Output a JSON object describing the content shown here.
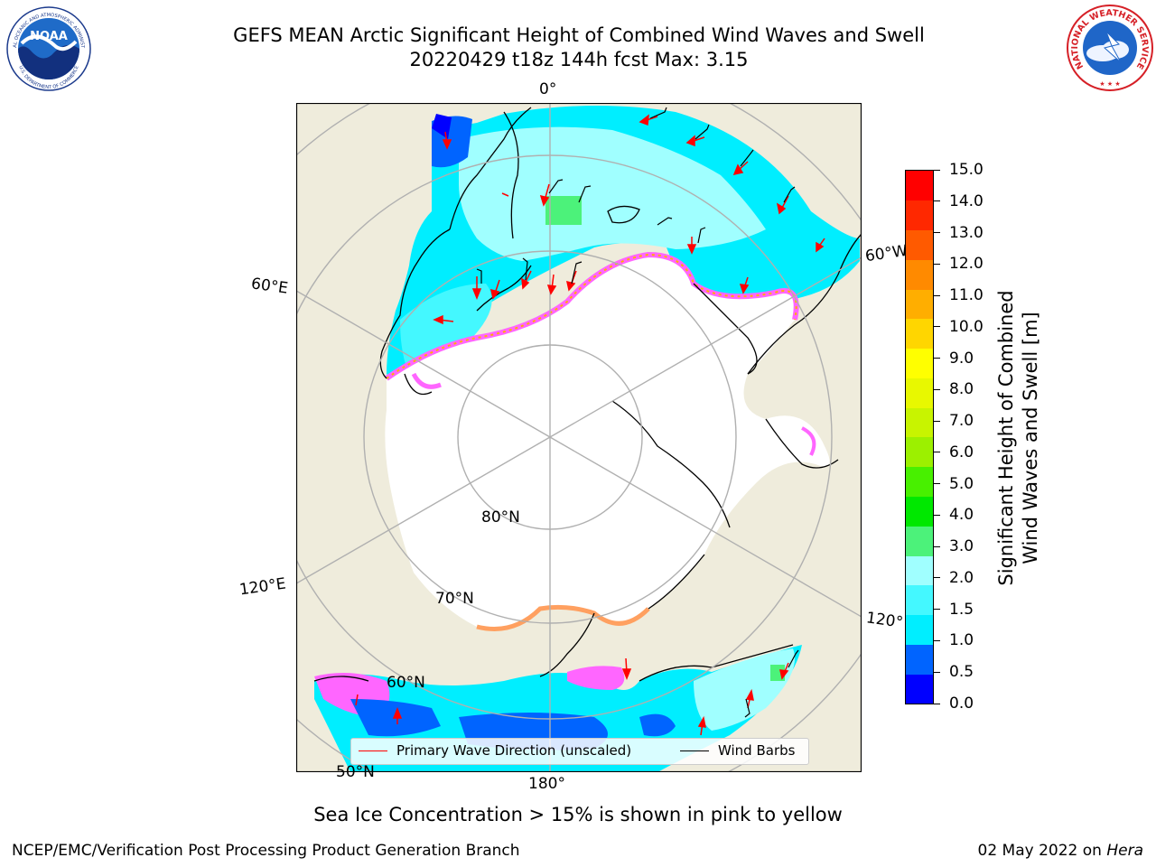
{
  "title": {
    "line1": "GEFS MEAN Arctic Significant Height of Combined Wind Waves and Swell",
    "line2": "20220429 t18z 144h fcst   Max: 3.15"
  },
  "logos": {
    "noaa_text": "NOAA",
    "noaa_ring_top": "NATIONAL OCEANIC AND ATMOSPHERIC ADMINISTRATION",
    "noaa_ring_bottom": "U.S. DEPARTMENT OF COMMERCE",
    "nws_ring": "NATIONAL WEATHER SERVICE"
  },
  "map": {
    "longitude_labels": [
      "0°",
      "60°E",
      "120°E",
      "180°",
      "120°",
      "60°W"
    ],
    "latitude_labels": [
      "80°N",
      "70°N",
      "60°N",
      "50°N"
    ],
    "legend": {
      "wave_direction": "Primary Wave Direction (unscaled)",
      "wind_barbs": "Wind Barbs"
    },
    "colors": {
      "land": "#efecdc",
      "ice": "#ffffff",
      "wave_direction": "#ff0000",
      "wind_barbs": "#000000",
      "gridlines": "#b0b0b0"
    }
  },
  "colorbar": {
    "label_line1": "Significant Height of Combined",
    "label_line2": "Wind Waves and Swell [m]",
    "ticks": [
      "15.0",
      "14.0",
      "13.0",
      "12.0",
      "11.0",
      "10.0",
      "9.0",
      "8.0",
      "7.0",
      "6.0",
      "5.0",
      "4.0",
      "3.0",
      "2.0",
      "1.5",
      "1.0",
      "0.5",
      "0.0"
    ],
    "colors_bottom_to_top": [
      "#0000ff",
      "#0064ff",
      "#00eeff",
      "#44f8ff",
      "#a0ffff",
      "#4cf27a",
      "#00e800",
      "#48f000",
      "#9cf000",
      "#c8f400",
      "#e8f800",
      "#ffff00",
      "#ffd600",
      "#ffae00",
      "#ff8a00",
      "#ff5a00",
      "#ff2800",
      "#ff0000"
    ]
  },
  "caption": "Sea Ice Concentration > 15% is shown in pink to yellow",
  "footer": {
    "left": "NCEP/EMC/Verification Post Processing Product Generation Branch",
    "right_date": "02 May 2022 on ",
    "right_machine": "Hera"
  }
}
